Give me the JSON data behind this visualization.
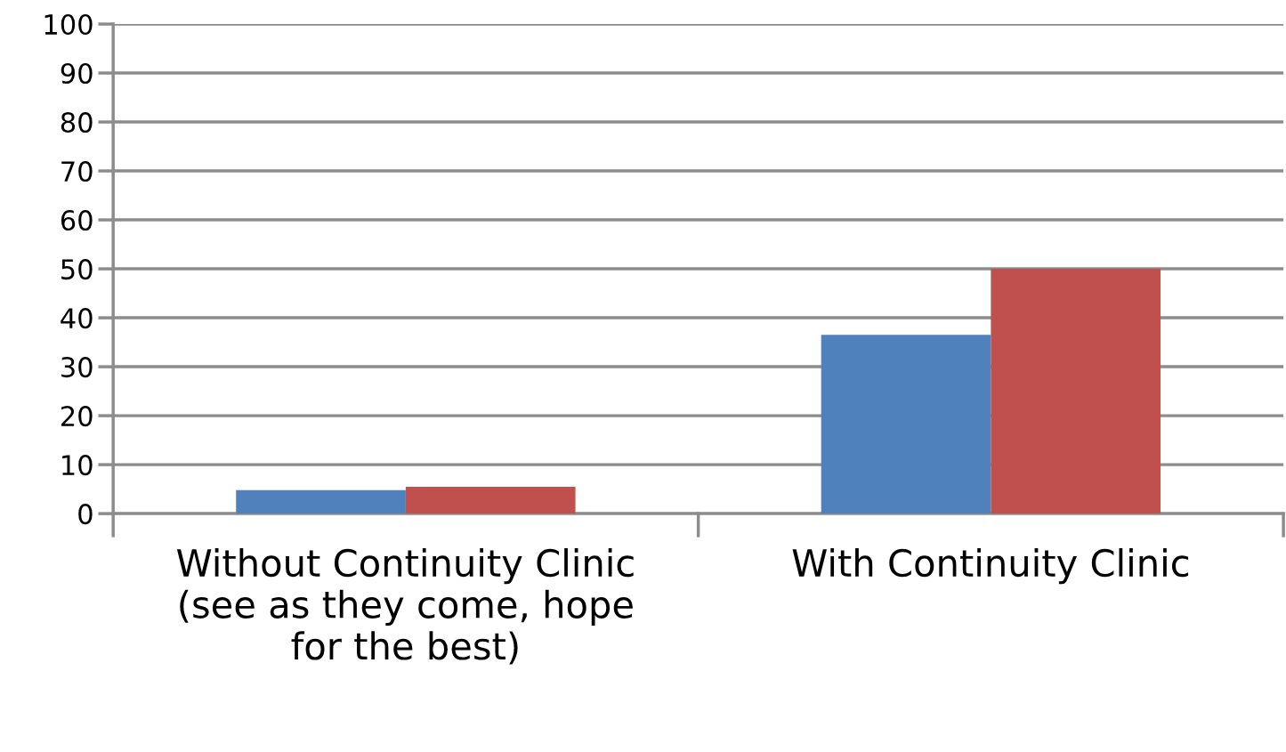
{
  "chart_data": {
    "type": "bar",
    "categories": [
      "Without Continuity Clinic\n(see as they come, hope\nfor the best)",
      "With Continuity Clinic"
    ],
    "series": [
      {
        "color": "#4f81bd",
        "values": [
          4.8,
          36.5
        ]
      },
      {
        "color": "#c0504d",
        "values": [
          5.5,
          50
        ]
      }
    ],
    "ylim": [
      0,
      100
    ],
    "yticks": [
      0,
      10,
      20,
      30,
      40,
      50,
      60,
      70,
      80,
      90,
      100
    ],
    "grid": "y"
  }
}
